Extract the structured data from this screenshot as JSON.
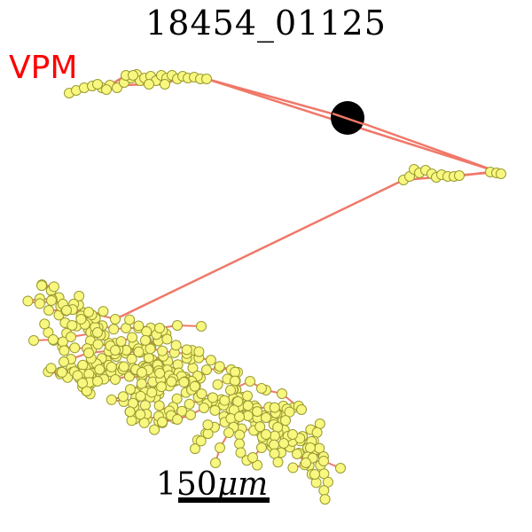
{
  "title": "18454_01125",
  "region_label": "VPM",
  "scale_bar": {
    "label": "150",
    "unit": "μm"
  },
  "colors": {
    "segment": "#f07868",
    "node_fill": "#f8f880",
    "node_stroke": "#9a9a30",
    "soma": "#000000",
    "label": "#ff0000"
  }
}
